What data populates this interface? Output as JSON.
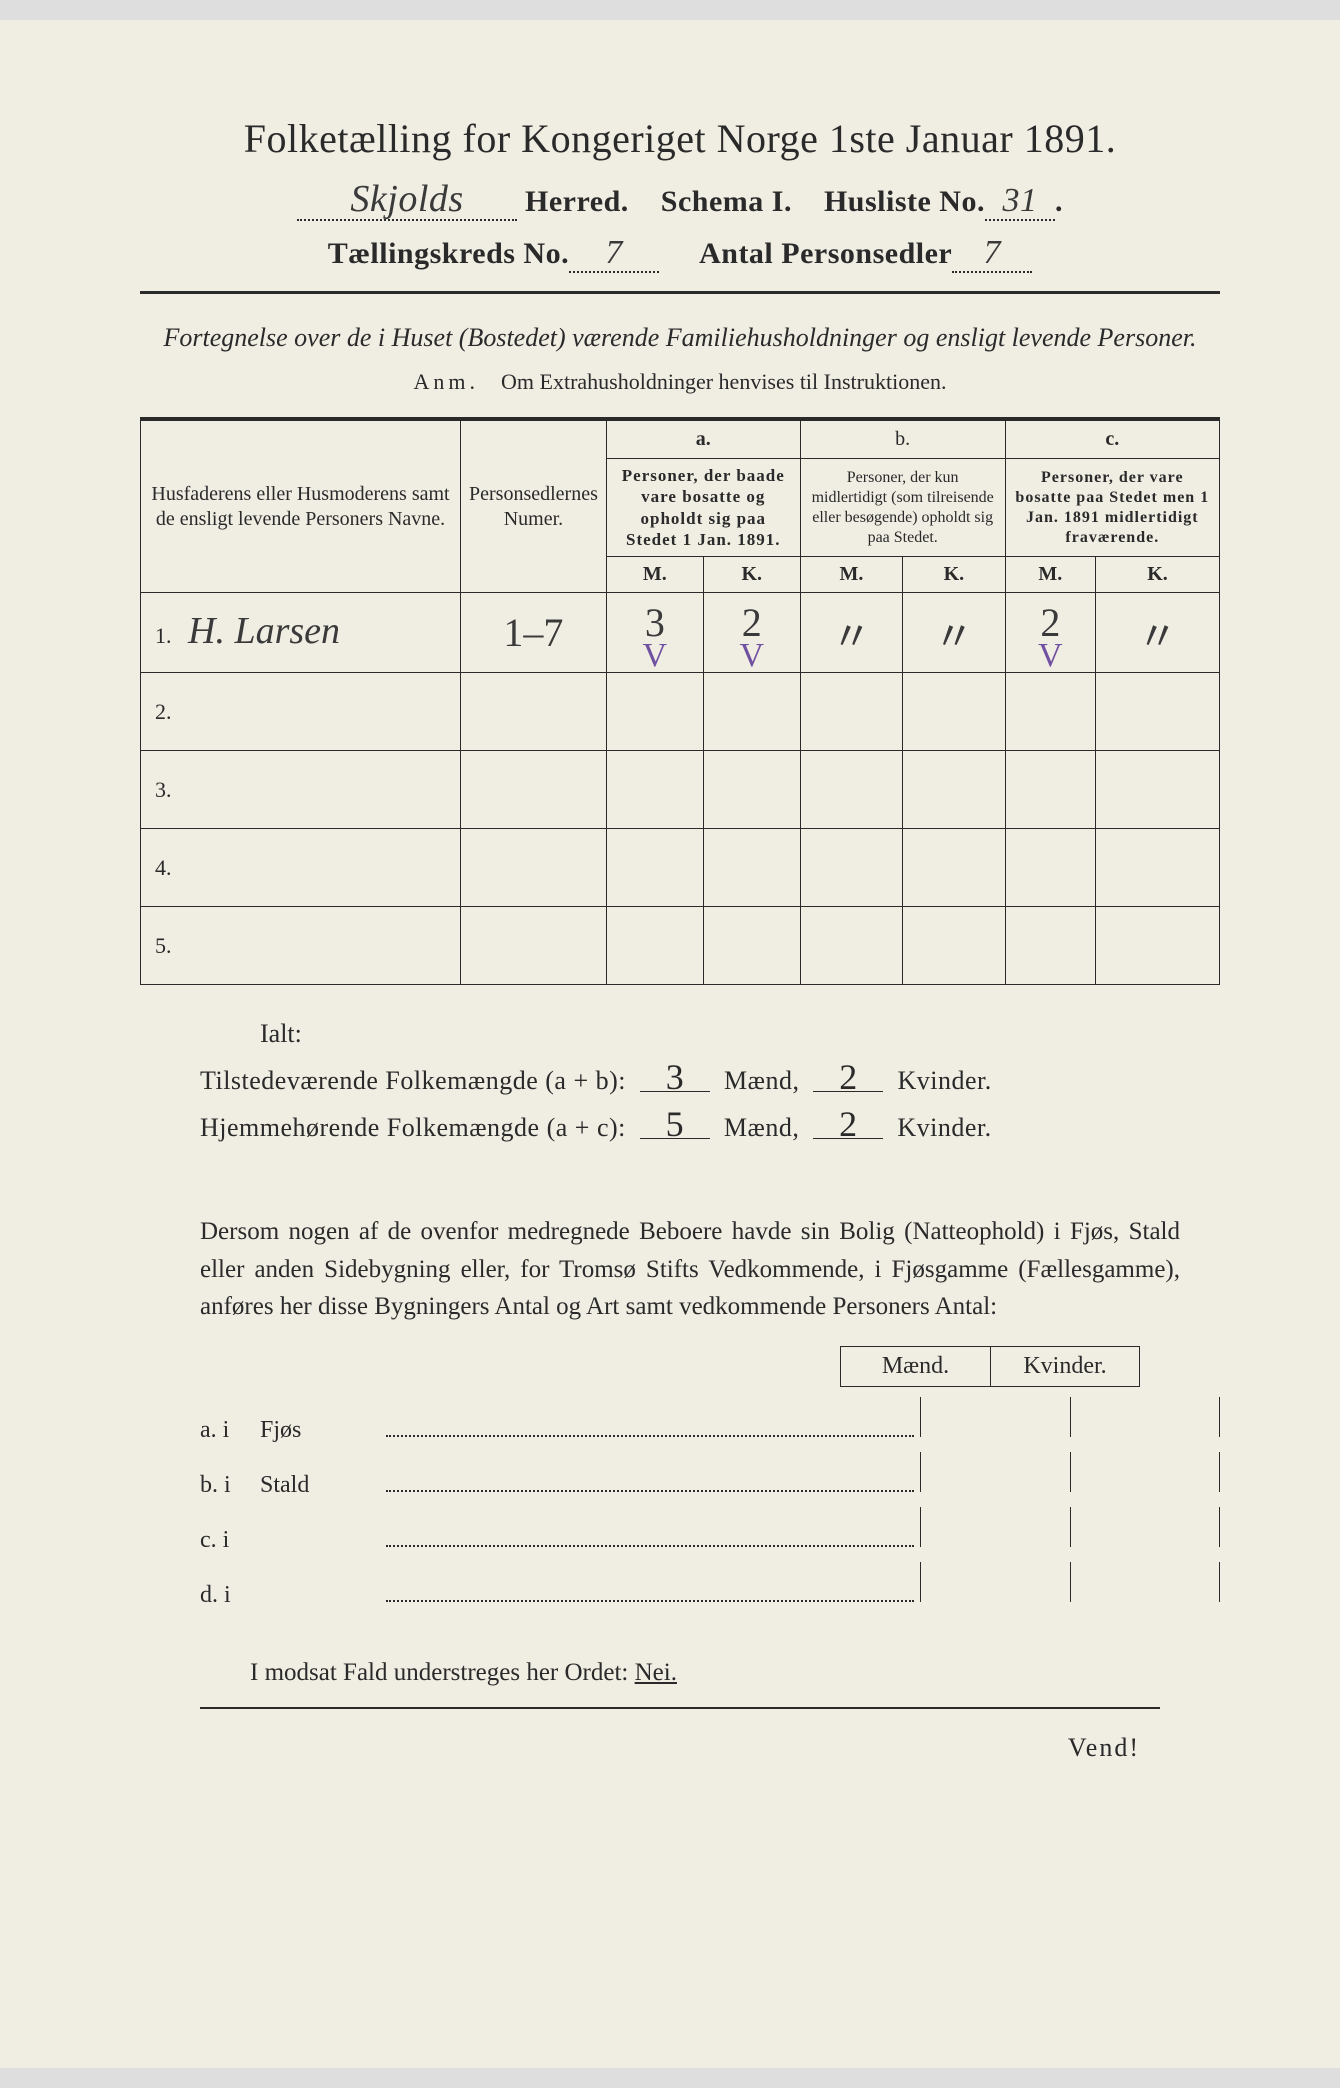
{
  "title": "Folketælling for Kongeriget Norge 1ste Januar 1891.",
  "header": {
    "herred_value": "Skjolds",
    "herred_label": "Herred.",
    "schema_label": "Schema I.",
    "husliste_label": "Husliste No.",
    "husliste_value": "31",
    "kreds_label": "Tællingskreds No.",
    "kreds_value": "7",
    "sedler_label": "Antal Personsedler",
    "sedler_value": "7"
  },
  "subtitle": "Fortegnelse over de i Huset (Bostedet) værende Familiehusholdninger og ensligt levende Personer.",
  "anm_label": "Anm.",
  "anm_text": "Om Extrahusholdninger henvises til Instruktionen.",
  "table": {
    "col1": "Husfaderens eller Husmoderens samt de ensligt levende Personers Navne.",
    "col2": "Personsedlernes Numer.",
    "col_a_letter": "a.",
    "col_a": "Personer, der baade vare bosatte og opholdt sig paa Stedet 1 Jan. 1891.",
    "col_b_letter": "b.",
    "col_b": "Personer, der kun midlertidigt (som tilreisende eller besøgende) opholdt sig paa Stedet.",
    "col_c_letter": "c.",
    "col_c": "Personer, der vare bosatte paa Stedet men 1 Jan. 1891 midlertidigt fraværende.",
    "m": "M.",
    "k": "K.",
    "rows": [
      {
        "num": "1.",
        "name": "H. Larsen",
        "ps": "1–7",
        "am": "3",
        "ak": "2",
        "bm": "〃",
        "bk": "〃",
        "cm": "2",
        "ck": "〃",
        "checks": true
      },
      {
        "num": "2.",
        "name": "",
        "ps": "",
        "am": "",
        "ak": "",
        "bm": "",
        "bk": "",
        "cm": "",
        "ck": ""
      },
      {
        "num": "3.",
        "name": "",
        "ps": "",
        "am": "",
        "ak": "",
        "bm": "",
        "bk": "",
        "cm": "",
        "ck": ""
      },
      {
        "num": "4.",
        "name": "",
        "ps": "",
        "am": "",
        "ak": "",
        "bm": "",
        "bk": "",
        "cm": "",
        "ck": ""
      },
      {
        "num": "5.",
        "name": "",
        "ps": "",
        "am": "",
        "ak": "",
        "bm": "",
        "bk": "",
        "cm": "",
        "ck": ""
      }
    ]
  },
  "ialt": "Ialt:",
  "sum1_label_a": "Tilstedeværende Folkemængde (a + b):",
  "sum1_m": "3",
  "sum1_k": "2",
  "sum2_label_a": "Hjemmehørende Folkemængde (a + c):",
  "sum2_m": "5",
  "sum2_k": "2",
  "maend": "Mænd,",
  "kvinder": "Kvinder.",
  "para_text": "Dersom nogen af de ovenfor medregnede Beboere havde sin Bolig (Natteophold) i Fjøs, Stald eller anden Sidebygning eller, for Tromsø Stifts Vedkommende, i Fjøsgamme (Fællesgamme), anføres her disse Bygningers Antal og Art samt vedkommende Personers Antal:",
  "mk": {
    "m": "Mænd.",
    "k": "Kvinder."
  },
  "side_rows": [
    {
      "lead": "a.  i",
      "label": "Fjøs"
    },
    {
      "lead": "b.  i",
      "label": "Stald"
    },
    {
      "lead": "c.  i",
      "label": ""
    },
    {
      "lead": "d.  i",
      "label": ""
    }
  ],
  "nei_line_a": "I modsat Fald understreges her Ordet: ",
  "nei_word": "Nei.",
  "vend": "Vend!"
}
